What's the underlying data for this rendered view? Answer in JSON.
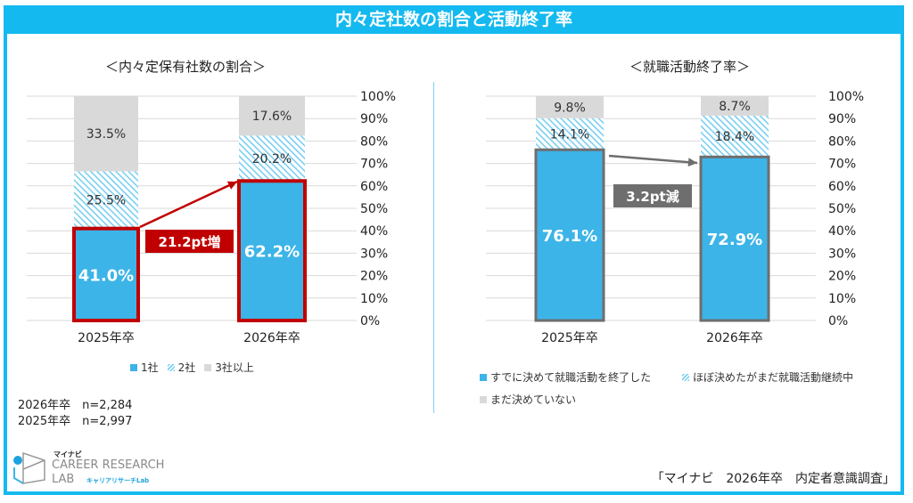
{
  "title": "内々定社数の割合と活動終了率",
  "colors": {
    "frame": "#14B9F0",
    "blue": "#3CB4E8",
    "hatch": "#7ACFF2",
    "gray": "#D9D9D9",
    "red": "#C00000",
    "darkgray": "#6E6E6E"
  },
  "notes": [
    "2026年卒　n=2,284",
    "2025年卒　n=2,997"
  ],
  "logo": {
    "brand": "マイナビ",
    "line1": "CAREER RESEARCH",
    "line2": "LAB",
    "kana": "キャリアリサーチLab"
  },
  "source": "「マイナビ　2026年卒　内定者意識調査」",
  "chart_data": [
    {
      "type": "bar",
      "stacked": true,
      "title": "＜内々定保有社数の割合＞",
      "categories": [
        "2025年卒",
        "2026年卒"
      ],
      "series": [
        {
          "name": "1社",
          "values": [
            41.0,
            62.2
          ],
          "labels": [
            "41.0%",
            "62.2%"
          ]
        },
        {
          "name": "2社",
          "values": [
            25.5,
            20.2
          ],
          "labels": [
            "25.5%",
            "20.2%"
          ]
        },
        {
          "name": "3社以上",
          "values": [
            33.5,
            17.6
          ],
          "labels": [
            "33.5%",
            "17.6%"
          ]
        }
      ],
      "ylim": [
        0,
        100
      ],
      "yticks": [
        "0%",
        "10%",
        "20%",
        "30%",
        "40%",
        "50%",
        "60%",
        "70%",
        "80%",
        "90%",
        "100%"
      ],
      "annotation": "21.2pt増",
      "legend_position": "bottom"
    },
    {
      "type": "bar",
      "stacked": true,
      "title": "＜就職活動終了率＞",
      "categories": [
        "2025年卒",
        "2026年卒"
      ],
      "series": [
        {
          "name": "すでに決めて就職活動を終了した",
          "values": [
            76.1,
            72.9
          ],
          "labels": [
            "76.1%",
            "72.9%"
          ]
        },
        {
          "name": "ほぼ決めたがまだ就職活動継続中",
          "values": [
            14.1,
            18.4
          ],
          "labels": [
            "14.1%",
            "18.4%"
          ]
        },
        {
          "name": "まだ決めていない",
          "values": [
            9.8,
            8.7
          ],
          "labels": [
            "9.8%",
            "8.7%"
          ]
        }
      ],
      "ylim": [
        0,
        100
      ],
      "yticks": [
        "0%",
        "10%",
        "20%",
        "30%",
        "40%",
        "50%",
        "60%",
        "70%",
        "80%",
        "90%",
        "100%"
      ],
      "annotation": "3.2pt減",
      "legend_position": "bottom"
    }
  ]
}
